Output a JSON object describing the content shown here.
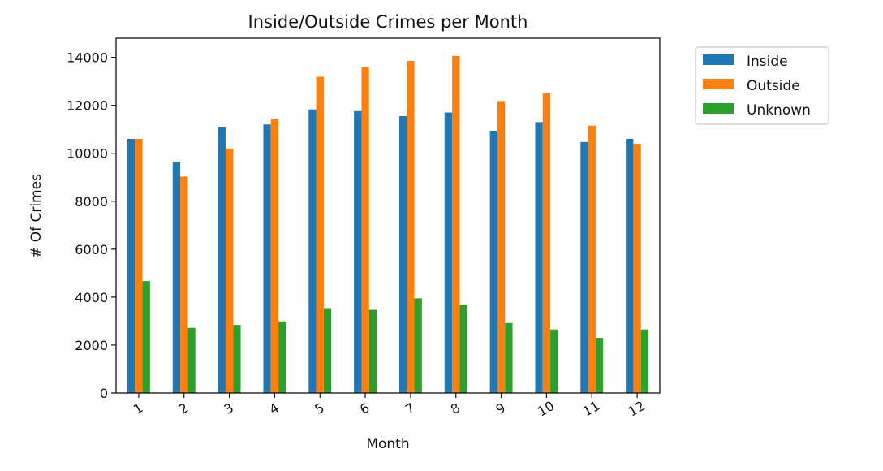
{
  "chart_data": {
    "type": "bar",
    "title": "Inside/Outside Crimes per Month",
    "xlabel": "Month",
    "ylabel": "# Of Crimes",
    "categories": [
      "1",
      "2",
      "3",
      "4",
      "5",
      "6",
      "7",
      "8",
      "9",
      "10",
      "11",
      "12"
    ],
    "yticks": [
      "0",
      "2000",
      "4000",
      "6000",
      "8000",
      "10000",
      "12000",
      "14000"
    ],
    "ylim": [
      0,
      14800
    ],
    "grid": false,
    "legend_position": "outside-top-right",
    "series": [
      {
        "name": "Inside",
        "color": "#1f77b4",
        "values": [
          10600,
          9650,
          11080,
          11200,
          11830,
          11760,
          11550,
          11700,
          10940,
          11300,
          10470,
          10600
        ]
      },
      {
        "name": "Outside",
        "color": "#ff7f0e",
        "values": [
          10600,
          9030,
          10200,
          11420,
          13190,
          13590,
          13850,
          14060,
          12180,
          12500,
          11150,
          10400
        ]
      },
      {
        "name": "Unknown",
        "color": "#2ca02c",
        "values": [
          4670,
          2720,
          2840,
          2990,
          3540,
          3470,
          3950,
          3660,
          2920,
          2650,
          2300,
          2650
        ]
      }
    ]
  }
}
